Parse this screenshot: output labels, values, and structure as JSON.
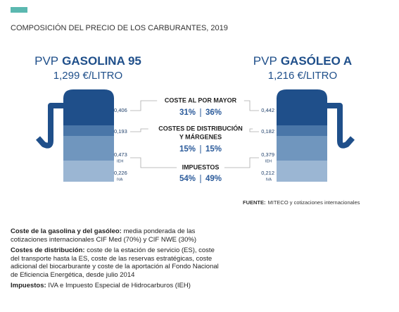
{
  "header": {
    "title": "COMPOSICIÓN DEL PRECIO DE LOS CARBURANTES, 2019"
  },
  "left": {
    "prefix": "PVP",
    "name": "GASOLINA 95",
    "price": "1,299 €/LITRO",
    "segments": [
      {
        "value": "0,406"
      },
      {
        "value": "0,193"
      },
      {
        "value": "0,473",
        "tag": "IEH"
      },
      {
        "value": "0,226",
        "tag": "IVA"
      }
    ]
  },
  "right": {
    "prefix": "PVP",
    "name": "GASÓLEO A",
    "price": "1,216 €/LITRO",
    "segments": [
      {
        "value": "0,442"
      },
      {
        "value": "0,182"
      },
      {
        "value": "0,379",
        "tag": "IEH"
      },
      {
        "value": "0,212",
        "tag": "IVA"
      }
    ]
  },
  "middle": [
    {
      "label": [
        "COSTE AL POR MAYOR"
      ],
      "left": "31%",
      "right": "36%"
    },
    {
      "label": [
        "COSTES DE DISTRIBUCIÓN",
        "Y MÁRGENES"
      ],
      "left": "15%",
      "right": "15%"
    },
    {
      "label": [
        "IMPUESTOS"
      ],
      "left": "54%",
      "right": "49%"
    }
  ],
  "source": {
    "label": "FUENTE:",
    "text": "MITECO y cotizaciones internacionales"
  },
  "notes": [
    {
      "term": "Coste de la gasolina y del gasóleo:",
      "text": "media ponderada de las cotizaciones internacionales CIF Med (70%) y CIF NWE (30%)"
    },
    {
      "term": "Costes de distribución:",
      "text": "coste de la estación de servicio (ES), coste del transporte hasta la ES, coste de las reservas estratégicas, coste adicional del biocarburante y coste de la aportación al Fondo Nacional de Eficiencia Energética, desde julio 2014"
    },
    {
      "term": "Impuestos:",
      "text": "IVA e Impuesto Especial de Hidrocarburos (IEH)"
    }
  ]
}
